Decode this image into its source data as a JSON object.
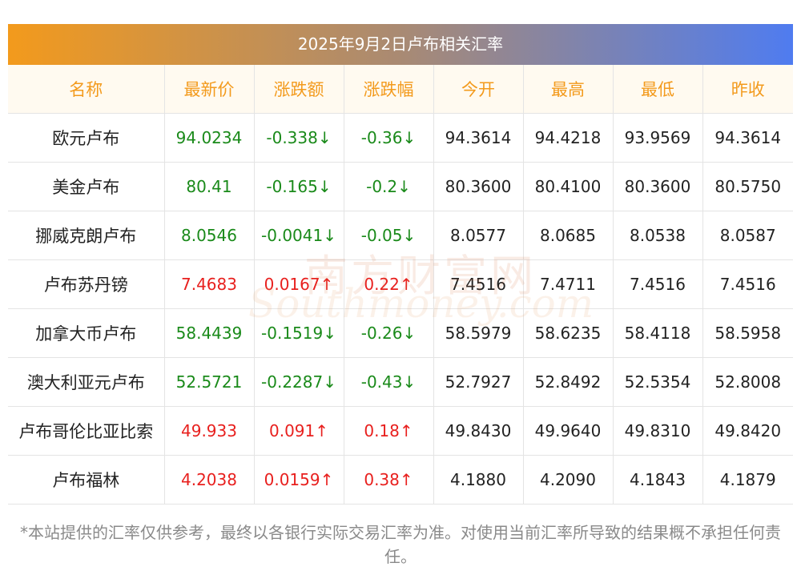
{
  "title": "2025年9月2日卢布相关汇率",
  "columns": [
    "名称",
    "最新价",
    "涨跌额",
    "涨跌幅",
    "今开",
    "最高",
    "最低",
    "昨收"
  ],
  "rows": [
    {
      "name": "欧元卢布",
      "latest": "94.0234",
      "change": "-0.338↓",
      "pct": "-0.36↓",
      "open": "94.3614",
      "high": "94.4218",
      "low": "93.9569",
      "prev": "94.3614",
      "dir": "down"
    },
    {
      "name": "美金卢布",
      "latest": "80.41",
      "change": "-0.165↓",
      "pct": "-0.2↓",
      "open": "80.3600",
      "high": "80.4100",
      "low": "80.3600",
      "prev": "80.5750",
      "dir": "down"
    },
    {
      "name": "挪威克朗卢布",
      "latest": "8.0546",
      "change": "-0.0041↓",
      "pct": "-0.05↓",
      "open": "8.0577",
      "high": "8.0685",
      "low": "8.0538",
      "prev": "8.0587",
      "dir": "down"
    },
    {
      "name": "卢布苏丹镑",
      "latest": "7.4683",
      "change": "0.0167↑",
      "pct": "0.22↑",
      "open": "7.4516",
      "high": "7.4711",
      "low": "7.4516",
      "prev": "7.4516",
      "dir": "up"
    },
    {
      "name": "加拿大币卢布",
      "latest": "58.4439",
      "change": "-0.1519↓",
      "pct": "-0.26↓",
      "open": "58.5979",
      "high": "58.6235",
      "low": "58.4118",
      "prev": "58.5958",
      "dir": "down"
    },
    {
      "name": "澳大利亚元卢布",
      "latest": "52.5721",
      "change": "-0.2287↓",
      "pct": "-0.43↓",
      "open": "52.7927",
      "high": "52.8492",
      "low": "52.5354",
      "prev": "52.8008",
      "dir": "down"
    },
    {
      "name": "卢布哥伦比亚比索",
      "latest": "49.933",
      "change": "0.091↑",
      "pct": "0.18↑",
      "open": "49.8430",
      "high": "49.9640",
      "low": "49.8310",
      "prev": "49.8420",
      "dir": "up"
    },
    {
      "name": "卢布福林",
      "latest": "4.2038",
      "change": "0.0159↑",
      "pct": "0.38↑",
      "open": "4.1880",
      "high": "4.2090",
      "low": "4.1843",
      "prev": "4.1879",
      "dir": "up"
    }
  ],
  "footnote": "*本站提供的汇率仅供参考，最终以各银行实际交易汇率为准。对使用当前汇率所导致的结果概不承担任何责任。",
  "watermark": {
    "cn": "南方财富网",
    "en": "Southmoney.com"
  },
  "colors": {
    "up": "#e8201e",
    "down": "#1a8a1a",
    "header_text": "#f39a1c"
  }
}
